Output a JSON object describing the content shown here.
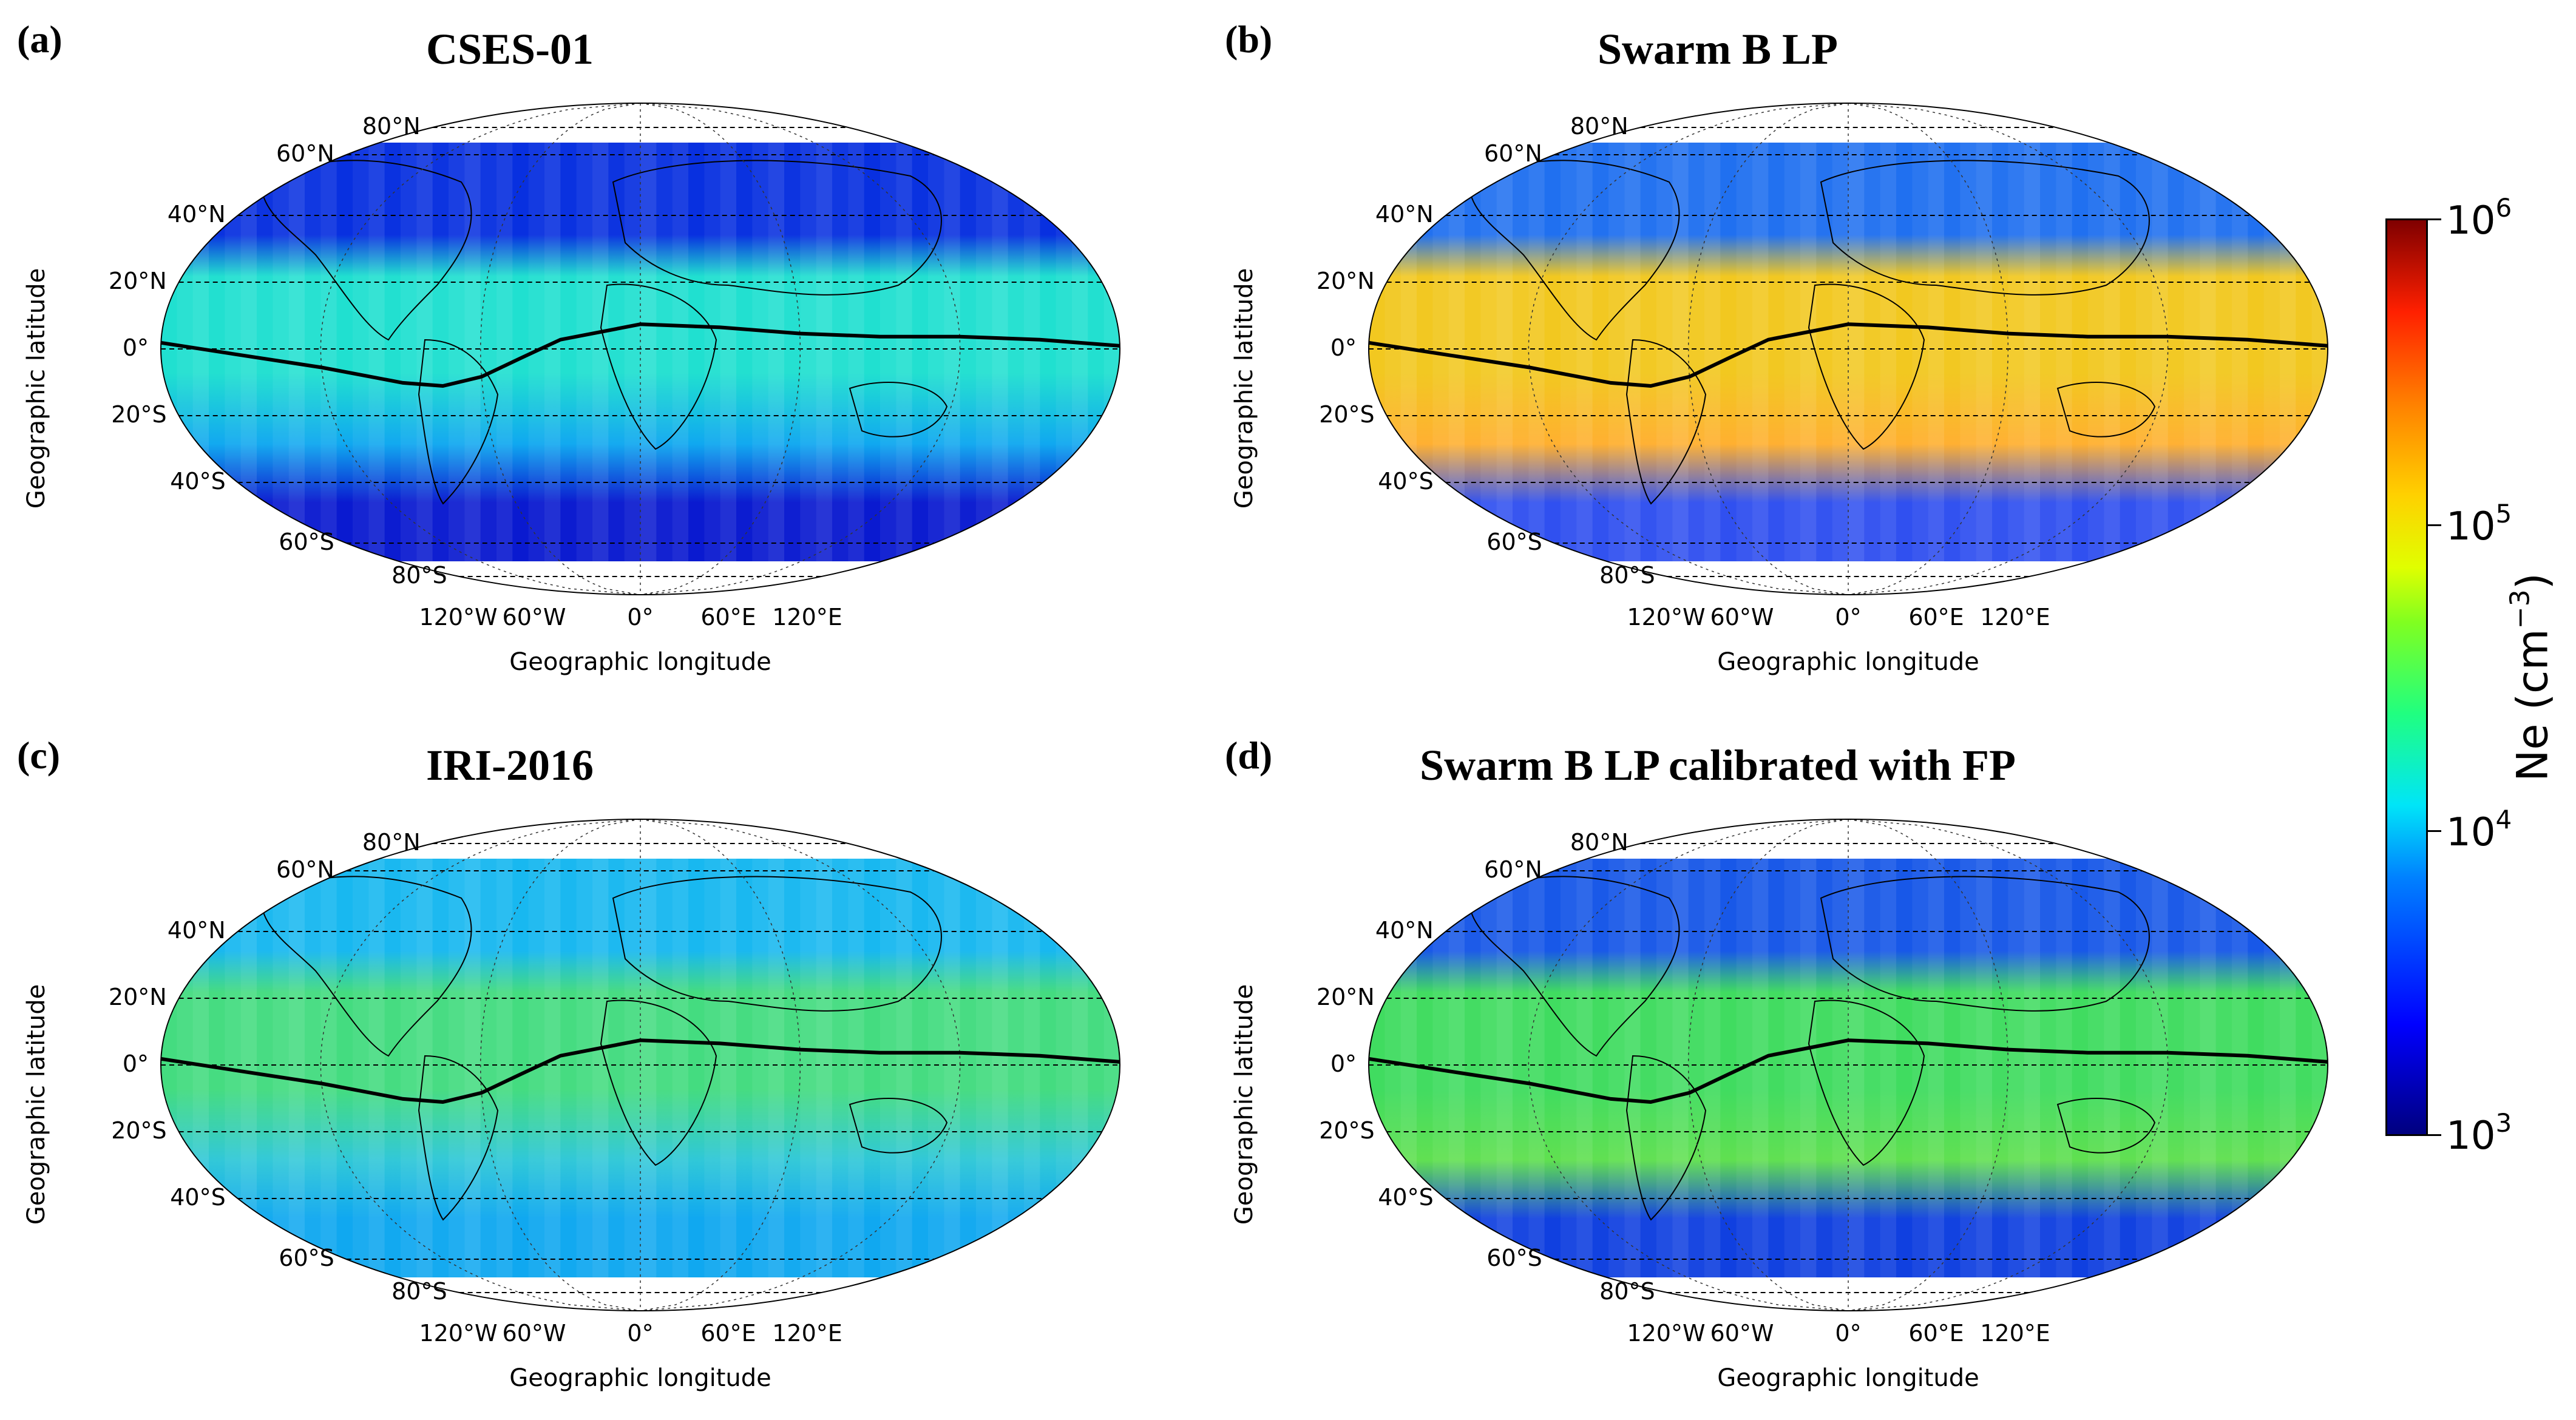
{
  "figure": {
    "panels": [
      {
        "letter": "(a)",
        "title": "CSES-01",
        "style": "cses"
      },
      {
        "letter": "(b)",
        "title": "Swarm B LP",
        "style": "swarm"
      },
      {
        "letter": "(c)",
        "title": "IRI-2016",
        "style": "iri"
      },
      {
        "letter": "(d)",
        "title": "Swarm B LP calibrated with FP",
        "style": "cal"
      }
    ],
    "lat_labels": [
      "80°N",
      "60°N",
      "40°N",
      "20°N",
      "0°",
      "20°S",
      "40°S",
      "60°S",
      "80°S"
    ],
    "lon_labels": [
      "120°W",
      "60°W",
      "0°",
      "60°E",
      "120°E"
    ],
    "xlabel": "Geographic longitude",
    "ylabel": "Geographic latitude"
  },
  "colorbar": {
    "label_base": "Ne (cm",
    "label_exp": "−3",
    "label_close": ")",
    "ticks": [
      {
        "base": "10",
        "exp": "6"
      },
      {
        "base": "10",
        "exp": "5"
      },
      {
        "base": "10",
        "exp": "4"
      },
      {
        "base": "10",
        "exp": "3"
      }
    ],
    "range": [
      "1e3",
      "1e6"
    ],
    "scale": "log",
    "colormap": "jet"
  },
  "colors": {
    "cses": {
      "mid": "#20e0d0",
      "south": "#10a8f0",
      "polar": "#0a1ad0",
      "northPolar": "#0830e0"
    },
    "swarm": {
      "mid": "#f2c820",
      "south": "#ffb030",
      "polar": "#3050f0",
      "northPolar": "#2070f0"
    },
    "iri": {
      "mid": "#44dc80",
      "south": "#30c8d8",
      "polar": "#10a8f0",
      "northPolar": "#18b8f0"
    },
    "cal": {
      "mid": "#40dc60",
      "south": "#60e050",
      "polar": "#1040e0",
      "northPolar": "#1858e8"
    }
  },
  "chart_data": {
    "type": "heatmap",
    "description_units": "electron density Ne in cm^-3, log color scale from 10^3 to 10^6",
    "magnetic_equator_lon": [
      -180,
      -150,
      -120,
      -90,
      -75,
      -60,
      -45,
      -30,
      0,
      30,
      60,
      90,
      120,
      150,
      180
    ],
    "magnetic_equator_lat": [
      2,
      -2,
      -6,
      -11,
      -12,
      -9,
      -3,
      3,
      8,
      7,
      5,
      4,
      4,
      3,
      1
    ],
    "lat_grid": [
      80,
      60,
      40,
      20,
      0,
      -20,
      -40,
      -60,
      -80
    ],
    "lon_grid": [
      -120,
      -60,
      0,
      60,
      120
    ]
  }
}
